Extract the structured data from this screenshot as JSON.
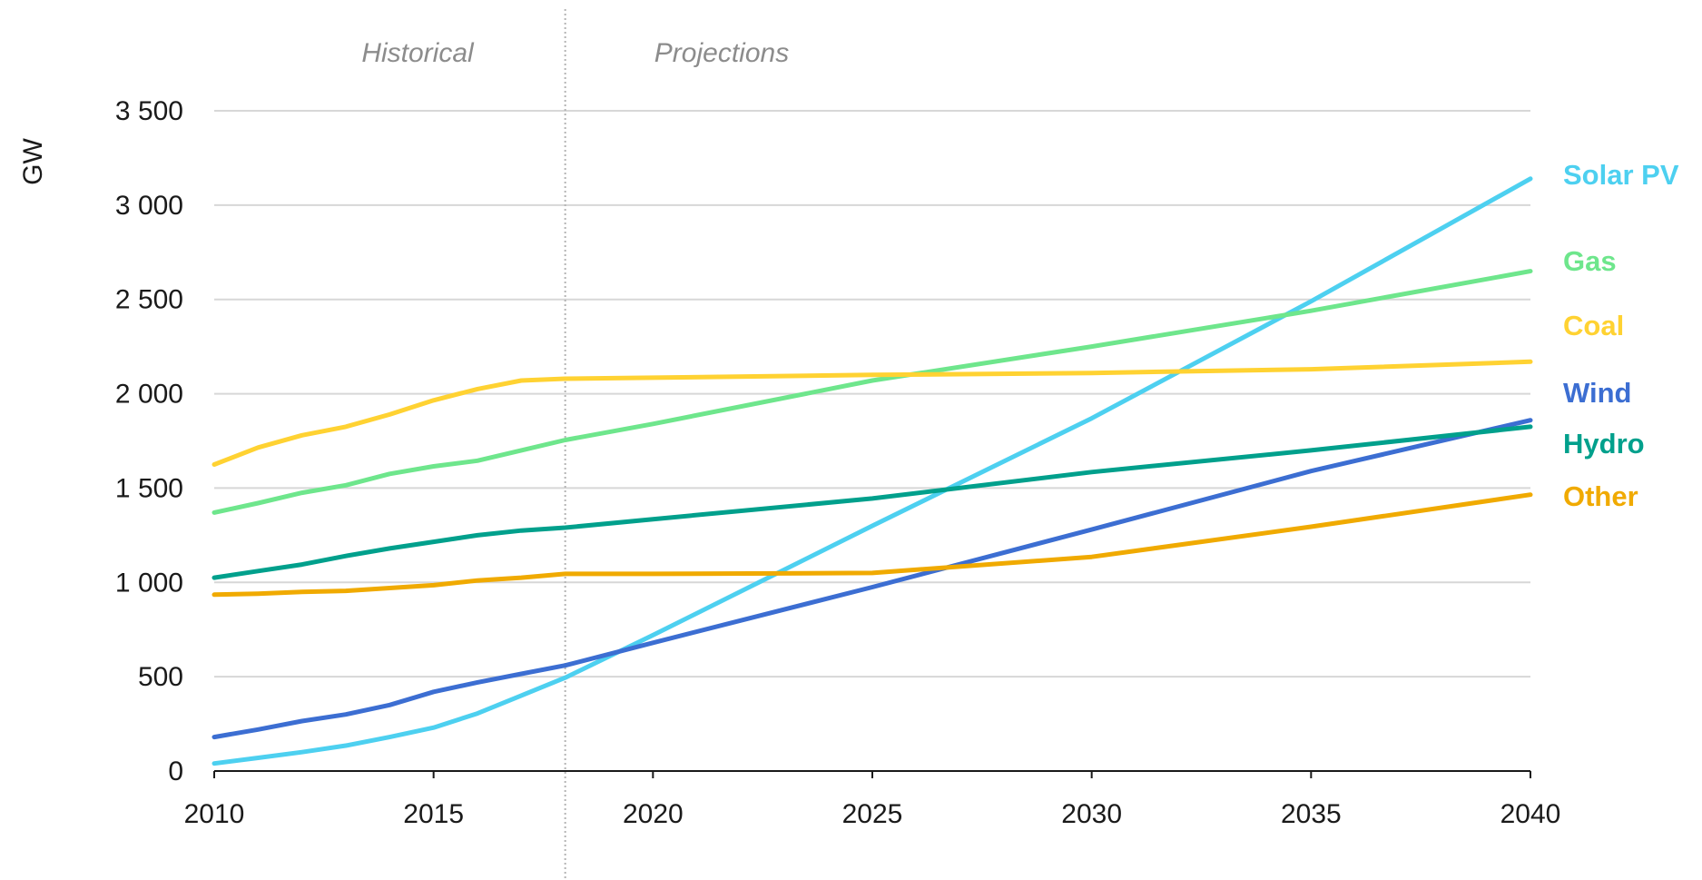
{
  "chart_data": {
    "type": "line",
    "title": "",
    "xlabel": "",
    "ylabel": "GW",
    "xlim": [
      2010,
      2040
    ],
    "ylim": [
      0,
      3500
    ],
    "x_ticks": [
      "2010",
      "2015",
      "2020",
      "2025",
      "2030",
      "2035",
      "2040"
    ],
    "y_ticks": [
      "0",
      "500",
      "1 000",
      "1 500",
      "2 000",
      "2 500",
      "3 000",
      "3 500"
    ],
    "grid": "horizontal",
    "divider_year": 2018,
    "period_labels": {
      "historical": "Historical",
      "projections": "Projections"
    },
    "legend": "direct labels at line ends (right)",
    "series": [
      {
        "name": "Solar PV",
        "color": "#4dd0f0",
        "x": [
          2010,
          2011,
          2012,
          2013,
          2014,
          2015,
          2016,
          2017,
          2018,
          2020,
          2025,
          2030,
          2035,
          2040
        ],
        "y": [
          40,
          70,
          100,
          135,
          180,
          230,
          305,
          400,
          495,
          720,
          1300,
          1870,
          2490,
          3140
        ]
      },
      {
        "name": "Gas",
        "color": "#6ee68c",
        "x": [
          2010,
          2011,
          2012,
          2013,
          2014,
          2015,
          2016,
          2017,
          2018,
          2020,
          2025,
          2030,
          2035,
          2040
        ],
        "y": [
          1370,
          1420,
          1475,
          1515,
          1575,
          1615,
          1645,
          1700,
          1755,
          1840,
          2070,
          2250,
          2440,
          2650
        ]
      },
      {
        "name": "Coal",
        "color": "#ffd232",
        "x": [
          2010,
          2011,
          2012,
          2013,
          2014,
          2015,
          2016,
          2017,
          2018,
          2020,
          2025,
          2030,
          2035,
          2040
        ],
        "y": [
          1625,
          1715,
          1780,
          1825,
          1890,
          1965,
          2025,
          2070,
          2080,
          2085,
          2100,
          2110,
          2130,
          2170
        ]
      },
      {
        "name": "Wind",
        "color": "#3c6ed2",
        "x": [
          2010,
          2011,
          2012,
          2013,
          2014,
          2015,
          2016,
          2017,
          2018,
          2020,
          2025,
          2030,
          2035,
          2040
        ],
        "y": [
          180,
          220,
          265,
          300,
          350,
          420,
          470,
          515,
          560,
          680,
          975,
          1280,
          1590,
          1860
        ]
      },
      {
        "name": "Hydro",
        "color": "#00a08c",
        "x": [
          2010,
          2011,
          2012,
          2013,
          2014,
          2015,
          2016,
          2017,
          2018,
          2020,
          2025,
          2030,
          2035,
          2040
        ],
        "y": [
          1025,
          1060,
          1095,
          1140,
          1180,
          1215,
          1250,
          1275,
          1290,
          1335,
          1445,
          1585,
          1700,
          1825
        ]
      },
      {
        "name": "Other",
        "color": "#f0aa00",
        "x": [
          2010,
          2011,
          2012,
          2013,
          2014,
          2015,
          2016,
          2017,
          2018,
          2020,
          2025,
          2030,
          2035,
          2040
        ],
        "y": [
          935,
          940,
          950,
          955,
          970,
          985,
          1010,
          1025,
          1045,
          1045,
          1050,
          1135,
          1295,
          1465
        ]
      }
    ]
  }
}
